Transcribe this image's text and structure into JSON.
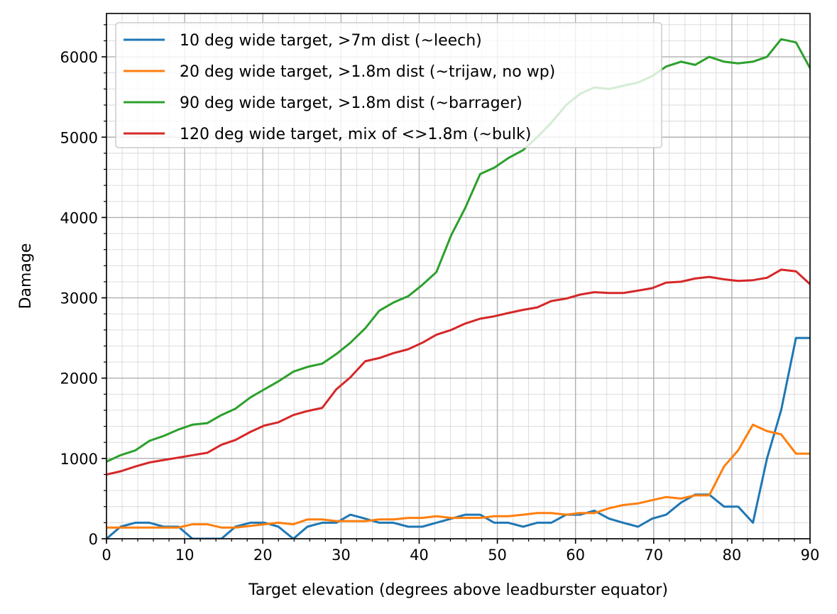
{
  "chart_data": {
    "type": "line",
    "title": "",
    "xlabel": "Target elevation (degrees above leadburster equator)",
    "ylabel": "Damage",
    "xlim": [
      0,
      90
    ],
    "ylim": [
      0,
      6540
    ],
    "xticks": [
      0,
      10,
      20,
      30,
      40,
      50,
      60,
      70,
      80,
      90
    ],
    "yticks": [
      0,
      1000,
      2000,
      3000,
      4000,
      5000,
      6000
    ],
    "xtick_labels": [
      "0",
      "10",
      "20",
      "30",
      "40",
      "50",
      "60",
      "70",
      "80",
      "90"
    ],
    "ytick_labels": [
      "0",
      "1000",
      "2000",
      "3000",
      "4000",
      "5000",
      "6000"
    ],
    "grid": "major and minor",
    "legend_position": "upper left",
    "x": [
      0,
      1.8,
      3.7,
      5.5,
      7.3,
      9.2,
      11,
      12.9,
      14.7,
      16.5,
      18.4,
      20.2,
      22,
      23.9,
      25.7,
      27.6,
      29.4,
      31.2,
      33.1,
      34.9,
      36.7,
      38.6,
      40.4,
      42.2,
      44.1,
      45.9,
      47.8,
      49.6,
      51.4,
      53.3,
      55.1,
      56.9,
      58.8,
      60.6,
      62.4,
      64.3,
      66.1,
      68,
      69.8,
      71.6,
      73.5,
      75.3,
      77.1,
      79,
      80.8,
      82.7,
      84.5,
      86.3,
      88.2,
      90
    ],
    "series": [
      {
        "name": "10 deg wide target, >7m dist (~leech)",
        "color": "#1f77b4",
        "values": [
          0,
          150,
          200,
          200,
          150,
          150,
          0,
          0,
          0,
          150,
          200,
          200,
          150,
          0,
          150,
          200,
          200,
          300,
          250,
          200,
          200,
          150,
          150,
          200,
          250,
          300,
          300,
          200,
          200,
          150,
          200,
          200,
          300,
          300,
          350,
          250,
          200,
          150,
          250,
          300,
          450,
          550,
          550,
          400,
          400,
          200,
          1000,
          1600,
          2500,
          2500
        ]
      },
      {
        "name": "20 deg wide target, >1.8m dist (~trijaw, no wp)",
        "color": "#ff7f0e",
        "values": [
          140,
          140,
          140,
          140,
          140,
          140,
          180,
          180,
          140,
          140,
          160,
          180,
          200,
          180,
          240,
          240,
          220,
          220,
          220,
          240,
          240,
          260,
          260,
          280,
          260,
          260,
          260,
          280,
          280,
          300,
          320,
          320,
          300,
          320,
          320,
          380,
          420,
          440,
          480,
          520,
          500,
          540,
          540,
          900,
          1100,
          1420,
          1340,
          1300,
          1060,
          1060
        ]
      },
      {
        "name": "90 deg wide target, >1.8m dist (~barrager)",
        "color": "#2ca02c",
        "values": [
          960,
          1040,
          1100,
          1220,
          1280,
          1360,
          1420,
          1440,
          1540,
          1620,
          1760,
          1860,
          1960,
          2080,
          2140,
          2180,
          2300,
          2440,
          2620,
          2840,
          2940,
          3020,
          3160,
          3320,
          3780,
          4120,
          4540,
          4620,
          4740,
          4840,
          5000,
          5180,
          5400,
          5540,
          5620,
          5600,
          5640,
          5680,
          5760,
          5880,
          5940,
          5900,
          6000,
          5940,
          5920,
          5940,
          6000,
          6220,
          6180,
          5860
        ]
      },
      {
        "name": "120 deg wide target, mix of <>1.8m (~bulk)",
        "color": "#d62728",
        "values": [
          800,
          840,
          900,
          950,
          980,
          1010,
          1040,
          1070,
          1170,
          1230,
          1330,
          1410,
          1450,
          1540,
          1590,
          1630,
          1860,
          2010,
          2210,
          2250,
          2310,
          2360,
          2440,
          2540,
          2600,
          2680,
          2740,
          2770,
          2810,
          2850,
          2880,
          2960,
          2990,
          3040,
          3070,
          3060,
          3060,
          3090,
          3120,
          3190,
          3200,
          3240,
          3260,
          3230,
          3210,
          3220,
          3250,
          3350,
          3330,
          3170
        ]
      }
    ]
  }
}
